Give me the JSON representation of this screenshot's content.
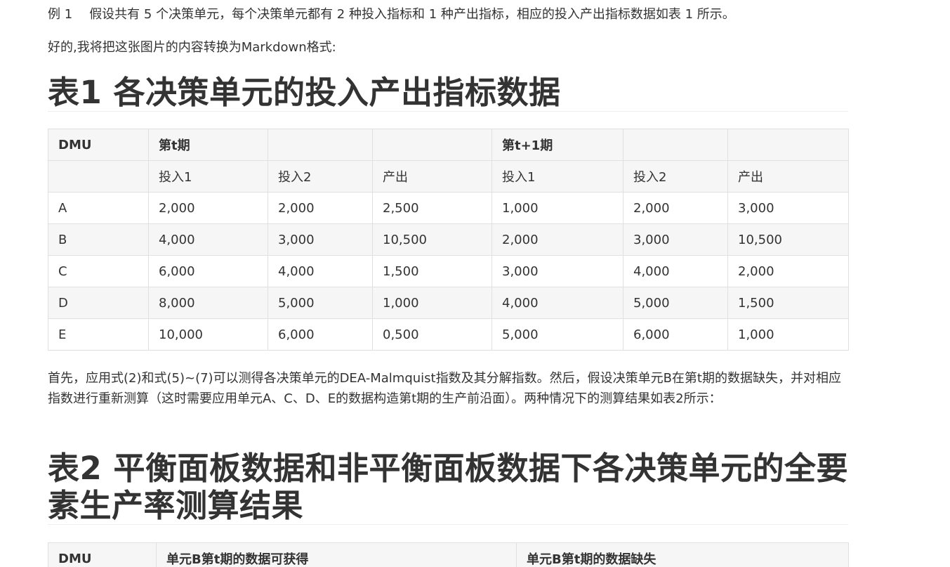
{
  "example": {
    "label": "例 1",
    "text": "假设共有 5 个决策单元，每个决策单元都有 2 种投入指标和 1 种产出指标，相应的投入产出指标数据如表 1 所示。"
  },
  "intro": "好的,我将把这张图片的内容转换为Markdown格式:",
  "table1": {
    "title": "表1 各决策单元的投入产出指标数据",
    "header": [
      "DMU",
      "第t期",
      "",
      "",
      "第t+1期",
      "",
      ""
    ],
    "subheader": [
      "",
      "投入1",
      "投入2",
      "产出",
      "投入1",
      "投入2",
      "产出"
    ],
    "rows": [
      [
        "A",
        "2,000",
        "2,000",
        "2,500",
        "1,000",
        "2,000",
        "3,000"
      ],
      [
        "B",
        "4,000",
        "3,000",
        "10,500",
        "2,000",
        "3,000",
        "10,500"
      ],
      [
        "C",
        "6,000",
        "4,000",
        "1,500",
        "3,000",
        "4,000",
        "2,000"
      ],
      [
        "D",
        "8,000",
        "5,000",
        "1,000",
        "4,000",
        "5,000",
        "1,500"
      ],
      [
        "E",
        "10,000",
        "6,000",
        "0,500",
        "5,000",
        "6,000",
        "1,000"
      ]
    ]
  },
  "paragraph": "首先，应用式(2)和式(5)~(7)可以测得各决策单元的DEA-Malmquist指数及其分解指数。然后，假设决策单元B在第t期的数据缺失，并对相应指数进行重新测算（这时需要应用单元A、C、D、E的数据构造第t期的生产前沿面）。两种情况下的测算结果如表2所示：",
  "table2": {
    "title": "表2 平衡面板数据和非平衡面板数据下各决策单元的全要素生产率测算结果",
    "header": [
      "DMU",
      "单元B第t期的数据可获得",
      "单元B第t期的数据缺失"
    ]
  }
}
